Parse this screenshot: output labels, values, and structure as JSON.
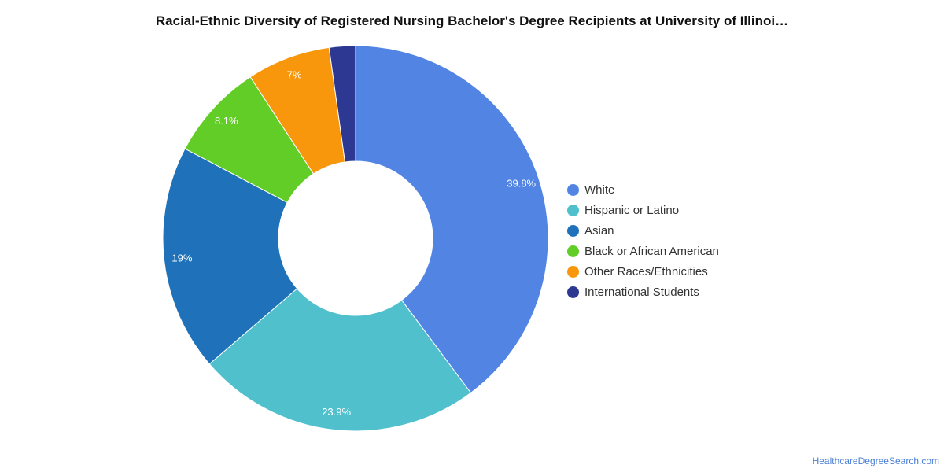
{
  "chart_data": {
    "type": "pie",
    "variant": "donut",
    "title": "Racial-Ethnic Diversity of Registered Nursing Bachelor's Degree Recipients at University of Illinoi…",
    "categories": [
      "White",
      "Hispanic or Latino",
      "Asian",
      "Black or African American",
      "Other Races/Ethnicities",
      "International Students"
    ],
    "values": [
      39.8,
      23.9,
      19,
      8.1,
      7,
      2.2
    ],
    "labels": [
      "39.8%",
      "23.9%",
      "19%",
      "8.1%",
      "7%",
      ""
    ],
    "colors": [
      "#5285e3",
      "#50c0cd",
      "#1f72b9",
      "#62cd26",
      "#f8960c",
      "#2c3891"
    ],
    "legend_position": "right"
  },
  "footer": {
    "credit": "HealthcareDegreeSearch.com"
  }
}
